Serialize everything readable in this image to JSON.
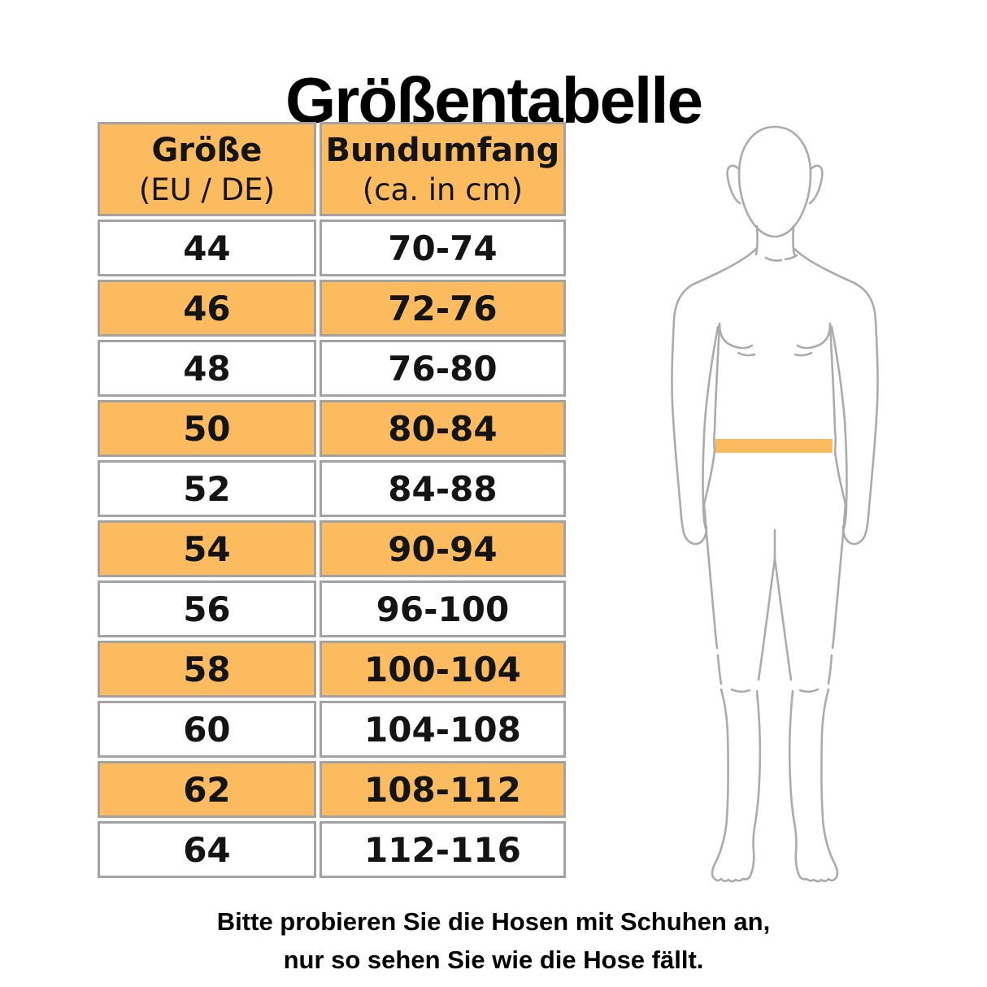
{
  "page": {
    "title": "Größentabelle"
  },
  "colors": {
    "accent_orange": "#FBBB5E",
    "cell_border_gray": "#A3A3A3",
    "figure_outline_gray": "#ABABAB",
    "text_black": "#000000"
  },
  "size_table": {
    "columns": [
      {
        "title": "Größe",
        "subtitle": "(EU / DE)"
      },
      {
        "title": "Bundumfang",
        "subtitle": "(ca. in cm)"
      }
    ],
    "rows": [
      {
        "size": "44",
        "waist_cm": "70-74",
        "highlighted": false
      },
      {
        "size": "46",
        "waist_cm": "72-76",
        "highlighted": true
      },
      {
        "size": "48",
        "waist_cm": "76-80",
        "highlighted": false
      },
      {
        "size": "50",
        "waist_cm": "80-84",
        "highlighted": true
      },
      {
        "size": "52",
        "waist_cm": "84-88",
        "highlighted": false
      },
      {
        "size": "54",
        "waist_cm": "90-94",
        "highlighted": true
      },
      {
        "size": "56",
        "waist_cm": "96-100",
        "highlighted": false
      },
      {
        "size": "58",
        "waist_cm": "100-104",
        "highlighted": true
      },
      {
        "size": "60",
        "waist_cm": "104-108",
        "highlighted": false
      },
      {
        "size": "62",
        "waist_cm": "108-112",
        "highlighted": true
      },
      {
        "size": "64",
        "waist_cm": "112-116",
        "highlighted": false
      }
    ]
  },
  "figure": {
    "icon": "male-body-outline-icon",
    "waistband_icon": "waist-measurement-band",
    "waistband_color": "#FBBB5E"
  },
  "footer": {
    "line1": "Bitte probieren Sie die Hosen mit Schuhen an,",
    "line2": "nur so sehen Sie wie die Hose fällt."
  }
}
